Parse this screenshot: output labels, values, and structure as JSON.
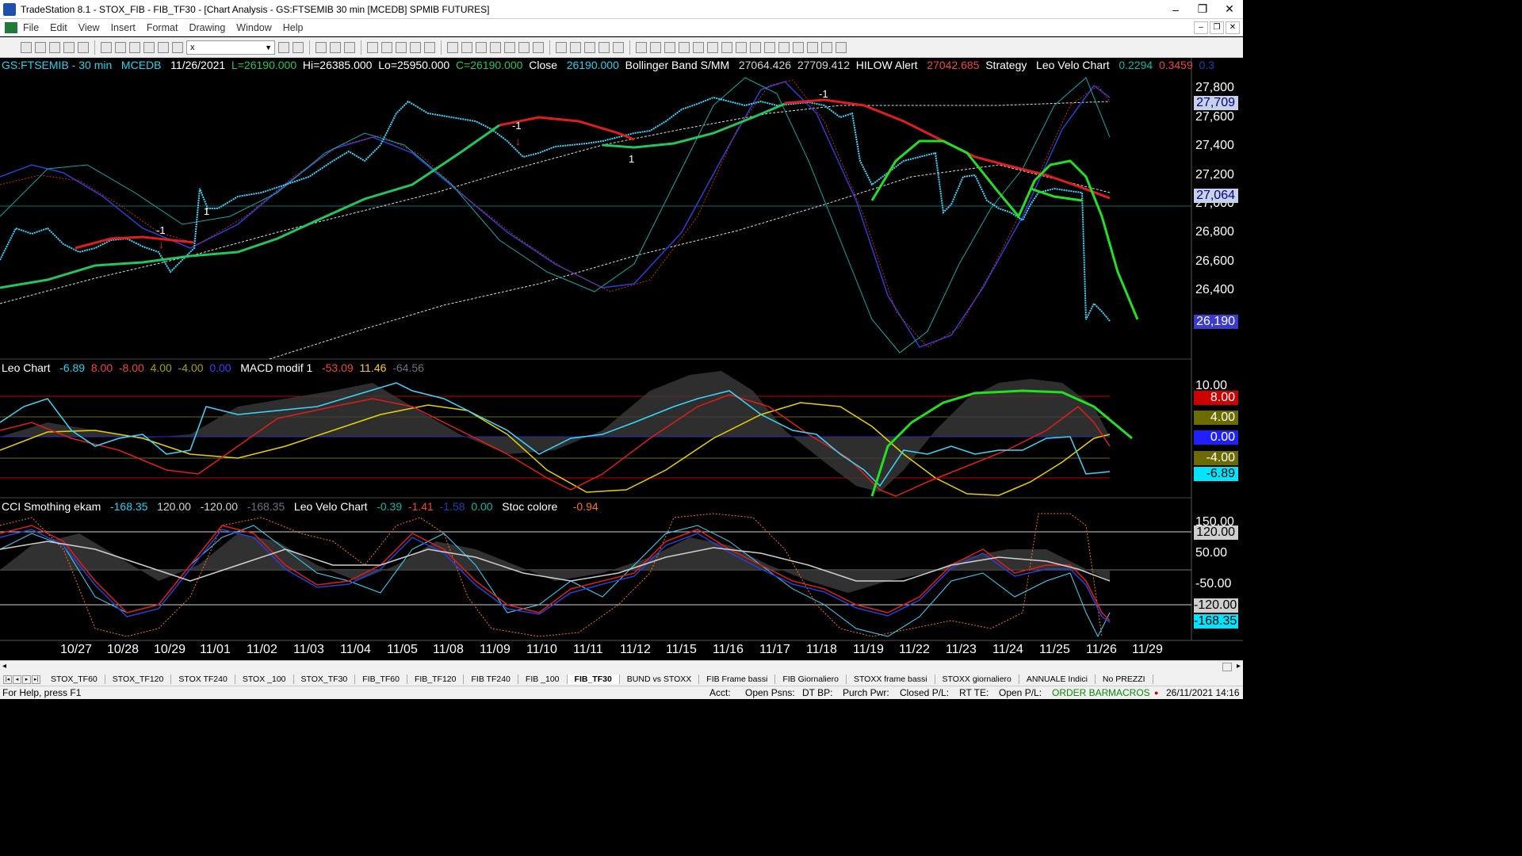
{
  "window": {
    "title": "TradeStation 8.1 - STOX_FIB - FIB_TF30 - [Chart Analysis - GS:FTSEMIB  30 min  [MCEDB] SPMIB FUTURES]",
    "minimize": "‒",
    "restore": "❐",
    "close": "✕"
  },
  "menu": [
    "File",
    "Edit",
    "View",
    "Insert",
    "Format",
    "Drawing",
    "Window",
    "Help"
  ],
  "toolbar": {
    "symbol_value": "x"
  },
  "price_pane": {
    "status": [
      {
        "text": "GS:FTSEMIB - 30 min",
        "color": "#22d3ee"
      },
      {
        "text": "MCEDB",
        "color": "#22d3ee"
      },
      {
        "text": "11/26/2021",
        "color": "#ffffff"
      },
      {
        "text": "L=26190.000",
        "color": "#22c55e"
      },
      {
        "text": "Hi=26385.000",
        "color": "#ffffff"
      },
      {
        "text": "Lo=25950.000",
        "color": "#ffffff"
      },
      {
        "text": "C=26190.000",
        "color": "#22c55e"
      },
      {
        "text": "Close",
        "color": "#ffffff"
      },
      {
        "text": "26190.000",
        "color": "#22d3ee"
      },
      {
        "text": "Bollinger Band S/MM",
        "color": "#ffffff"
      },
      {
        "text": "27064.426",
        "color": "#d1d5db"
      },
      {
        "text": "27709.412",
        "color": "#d1d5db"
      },
      {
        "text": "HILOW Alert",
        "color": "#ffffff"
      },
      {
        "text": "27042.685",
        "color": "#ef4444"
      },
      {
        "text": "Strategy",
        "color": "#ffffff"
      },
      {
        "text": "Leo Velo Chart",
        "color": "#ffffff"
      },
      {
        "text": "0.2294",
        "color": "#0fb6a5"
      },
      {
        "text": "0.3459",
        "color": "#ef4444"
      },
      {
        "text": "0.3",
        "color": "#1e40af"
      }
    ],
    "axis": [
      "27,800",
      "27,600",
      "27,400",
      "27,200",
      "27,000",
      "26,800",
      "26,600",
      "26,400"
    ],
    "boxes": [
      {
        "text": "27,709",
        "bg": "#c7d2e8",
        "color": "#000080"
      },
      {
        "text": "27,064",
        "bg": "#c7d2e8",
        "color": "#000080"
      },
      {
        "text": "26,190",
        "bg": "#3b3bcc",
        "color": "#ffffff"
      }
    ],
    "markers": [
      "-1",
      "1",
      "-1",
      "1",
      "-1",
      "1"
    ]
  },
  "leo_pane": {
    "status": [
      {
        "text": "Leo Chart",
        "color": "#ffffff"
      },
      {
        "text": "-6.89",
        "color": "#22d3ee"
      },
      {
        "text": "8.00",
        "color": "#ef4444"
      },
      {
        "text": "-8.00",
        "color": "#ef4444"
      },
      {
        "text": "4.00",
        "color": "#a3a300"
      },
      {
        "text": "-4.00",
        "color": "#a3a300"
      },
      {
        "text": "0.00",
        "color": "#3b3bff"
      },
      {
        "text": "MACD modif 1",
        "color": "#ffffff"
      },
      {
        "text": "-53.09",
        "color": "#ef4444"
      },
      {
        "text": "11.46",
        "color": "#facc15"
      },
      {
        "text": "-64.56",
        "color": "#6b7280"
      }
    ],
    "axis_top": "10.00",
    "boxes": [
      {
        "text": "8.00",
        "bg": "#cc0000",
        "color": "#ffffff"
      },
      {
        "text": "4.00",
        "bg": "#6b6b00",
        "color": "#ffffff"
      },
      {
        "text": "0.00",
        "bg": "#2020ff",
        "color": "#ffffff"
      },
      {
        "text": "-4.00",
        "bg": "#6b6b00",
        "color": "#ffffff"
      },
      {
        "text": "-6.89",
        "bg": "#00e5ff",
        "color": "#000000"
      }
    ]
  },
  "cci_pane": {
    "status": [
      {
        "text": "CCI Smothing ekam",
        "color": "#ffffff"
      },
      {
        "text": "-168.35",
        "color": "#22d3ee"
      },
      {
        "text": "120.00",
        "color": "#d1d5db"
      },
      {
        "text": "-120.00",
        "color": "#d1d5db"
      },
      {
        "text": "-168.35",
        "color": "#6b7280"
      },
      {
        "text": "Leo Velo Chart",
        "color": "#ffffff"
      },
      {
        "text": "-0.39",
        "color": "#0fb6a5"
      },
      {
        "text": "-1.41",
        "color": "#ef4444"
      },
      {
        "text": "-1.58",
        "color": "#1e40af"
      },
      {
        "text": "0.00",
        "color": "#0fb6a5"
      },
      {
        "text": "Stoc colore",
        "color": "#ffffff"
      },
      {
        "text": "-0.94",
        "color": "#f97316"
      }
    ],
    "axis": [
      "150.00",
      "50.00",
      "-50.00"
    ],
    "boxes": [
      {
        "text": "120.00",
        "bg": "#cfcfcf",
        "color": "#000000"
      },
      {
        "text": "-120.00",
        "bg": "#cfcfcf",
        "color": "#000000"
      },
      {
        "text": "-168.35",
        "bg": "#00e5ff",
        "color": "#000000"
      }
    ]
  },
  "dates": [
    "10/27",
    "10/28",
    "10/29",
    "11/01",
    "11/02",
    "11/03",
    "11/04",
    "11/05",
    "11/08",
    "11/09",
    "11/10",
    "11/11",
    "11/12",
    "11/15",
    "11/16",
    "11/17",
    "11/18",
    "11/19",
    "11/22",
    "11/23",
    "11/24",
    "11/25",
    "11/26",
    "11/29"
  ],
  "tabs": [
    "STOX_TF60",
    "STOX_TF120",
    "STOX TF240",
    "STOX _100",
    "STOX_TF30",
    "FIB_TF60",
    "FIB_TF120",
    "FIB TF240",
    "FIB _100",
    "FIB_TF30",
    "BUND vs STOXX",
    "FIB Frame bassi",
    "FIB Giornaliero",
    "STOXX frame bassi",
    "STOXX giornaliero",
    "ANNUALE Indici",
    "No PREZZI"
  ],
  "active_tab": "FIB_TF30",
  "statusbar": {
    "help": "For Help, press F1",
    "acct": "Acct:",
    "open_psns": "Open Psns:",
    "dt_bp": "DT BP:",
    "purch_pwr": "Purch Pwr:",
    "closed_pl": "Closed P/L:",
    "rt_te": "RT TE:",
    "open_pl": "Open P/L:",
    "order_bar": "ORDER BAR",
    "macros": "MACROS",
    "datetime": "26/11/2021 14:16"
  }
}
